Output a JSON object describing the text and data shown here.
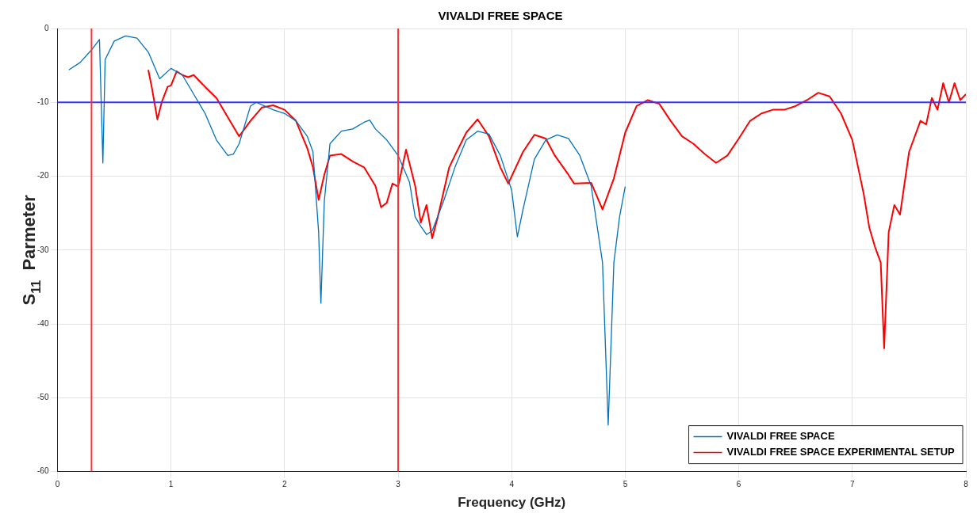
{
  "chart_data": {
    "type": "line",
    "title": "VIVALDI FREE SPACE",
    "xlabel": "Frequency (GHz)",
    "ylabel": "S$_{11}$  Parmeter",
    "xlim": [
      0,
      8
    ],
    "xticks": [
      0,
      1,
      2,
      3,
      4,
      5,
      6,
      7,
      8
    ],
    "ylim": [
      -60,
      0
    ],
    "yticks": [
      -60,
      -50,
      -40,
      -30,
      -20,
      -10,
      0
    ],
    "grid": true,
    "legend": "bottom right",
    "marker": "none",
    "line_style": "solid",
    "series": [
      {
        "name": "VIVALDI FREE SPACE",
        "color": "#0072bd",
        "x": [
          0.1,
          0.2,
          0.3,
          0.35,
          0.37,
          0.4,
          0.42,
          0.5,
          0.6,
          0.7,
          0.8,
          0.9,
          1.0,
          1.1,
          1.2,
          1.3,
          1.4,
          1.5,
          1.55,
          1.6,
          1.7,
          1.75,
          1.9,
          2.0,
          2.1,
          2.2,
          2.25,
          2.3,
          2.32,
          2.35,
          2.4,
          2.5,
          2.6,
          2.7,
          2.75,
          2.8,
          2.9,
          3.0,
          3.1,
          3.15,
          3.2,
          3.25,
          3.3,
          3.4,
          3.5,
          3.6,
          3.7,
          3.8,
          3.9,
          4.0,
          4.05,
          4.1,
          4.2,
          4.3,
          4.4,
          4.5,
          4.6,
          4.7,
          4.8,
          4.85,
          4.9,
          4.95,
          5.0
        ],
        "values": [
          -5.6,
          -4.6,
          -2.9,
          -1.9,
          -1.5,
          -18.2,
          -4.2,
          -1.7,
          -1.0,
          -1.3,
          -3.2,
          -6.8,
          -5.4,
          -6.3,
          -8.9,
          -11.5,
          -15.1,
          -17.2,
          -17,
          -15.6,
          -10.5,
          -10,
          -11,
          -11.5,
          -12.5,
          -14.6,
          -16.7,
          -27.6,
          -37.2,
          -23.4,
          -15.6,
          -13.9,
          -13.6,
          -12.7,
          -12.4,
          -13.6,
          -15.1,
          -17.2,
          -20.8,
          -25.5,
          -26.8,
          -27.9,
          -27.4,
          -23.4,
          -18.8,
          -15.1,
          -13.9,
          -14.3,
          -17.2,
          -21.9,
          -28.2,
          -24.5,
          -17.7,
          -15.1,
          -14.4,
          -14.9,
          -17.2,
          -21.3,
          -31.7,
          -53.7,
          -31.7,
          -25.5,
          -21.4
        ]
      },
      {
        "name": "VIVALDI FREE SPACE EXPERIMENTAL SETUP",
        "color": "#ff0000",
        "x": [
          0.8,
          0.83,
          0.88,
          0.92,
          0.97,
          1.0,
          1.05,
          1.1,
          1.15,
          1.2,
          1.3,
          1.4,
          1.5,
          1.6,
          1.7,
          1.8,
          1.9,
          2.0,
          2.1,
          2.2,
          2.25,
          2.3,
          2.35,
          2.4,
          2.5,
          2.6,
          2.7,
          2.8,
          2.85,
          2.9,
          2.95,
          3.0,
          3.07,
          3.15,
          3.2,
          3.25,
          3.3,
          3.35,
          3.45,
          3.5,
          3.6,
          3.7,
          3.8,
          3.9,
          3.97,
          4.1,
          4.2,
          4.3,
          4.38,
          4.5,
          4.55,
          4.7,
          4.8,
          4.9,
          5.0,
          5.1,
          5.2,
          5.3,
          5.4,
          5.5,
          5.6,
          5.7,
          5.8,
          5.9,
          6.0,
          6.1,
          6.2,
          6.3,
          6.4,
          6.5,
          6.6,
          6.7,
          6.8,
          6.9,
          7.0,
          7.1,
          7.15,
          7.2,
          7.25,
          7.28,
          7.32,
          7.37,
          7.42,
          7.5,
          7.6,
          7.65,
          7.7,
          7.75,
          7.8,
          7.85,
          7.9,
          7.95,
          8.0
        ],
        "values": [
          -5.6,
          -7.9,
          -12.3,
          -9.9,
          -7.9,
          -7.7,
          -5.8,
          -6.3,
          -6.6,
          -6.3,
          -7.9,
          -9.4,
          -12,
          -14.6,
          -12.5,
          -10.7,
          -10.4,
          -11,
          -12.5,
          -16.2,
          -18.8,
          -23.2,
          -19.8,
          -17.2,
          -17,
          -18,
          -18.8,
          -21.3,
          -24.2,
          -23.6,
          -21,
          -21.4,
          -16.4,
          -21.3,
          -26.3,
          -23.9,
          -28.4,
          -25.5,
          -18.8,
          -17.2,
          -14.1,
          -12.3,
          -14.6,
          -18.8,
          -21,
          -16.7,
          -14.4,
          -14.9,
          -17.2,
          -19.8,
          -21,
          -20.9,
          -24.5,
          -20.3,
          -14.1,
          -10.5,
          -9.7,
          -10.2,
          -12.5,
          -14.6,
          -15.6,
          -17,
          -18.2,
          -17.2,
          -14.9,
          -12.5,
          -11.5,
          -11,
          -11,
          -10.5,
          -9.7,
          -8.7,
          -9.2,
          -11.5,
          -15.1,
          -22.4,
          -27,
          -29.6,
          -31.7,
          -43.3,
          -27.6,
          -23.9,
          -25.2,
          -16.7,
          -12.5,
          -13,
          -9.4,
          -11,
          -7.4,
          -10,
          -7.4,
          -9.7,
          -8.9
        ]
      }
    ],
    "ref_lines": [
      {
        "axis": "y",
        "value": -10,
        "color": "#3333ff"
      },
      {
        "axis": "x",
        "value": 0.3,
        "color": "#ff3333"
      },
      {
        "axis": "x",
        "value": 3,
        "color": "#ff3333"
      }
    ]
  }
}
